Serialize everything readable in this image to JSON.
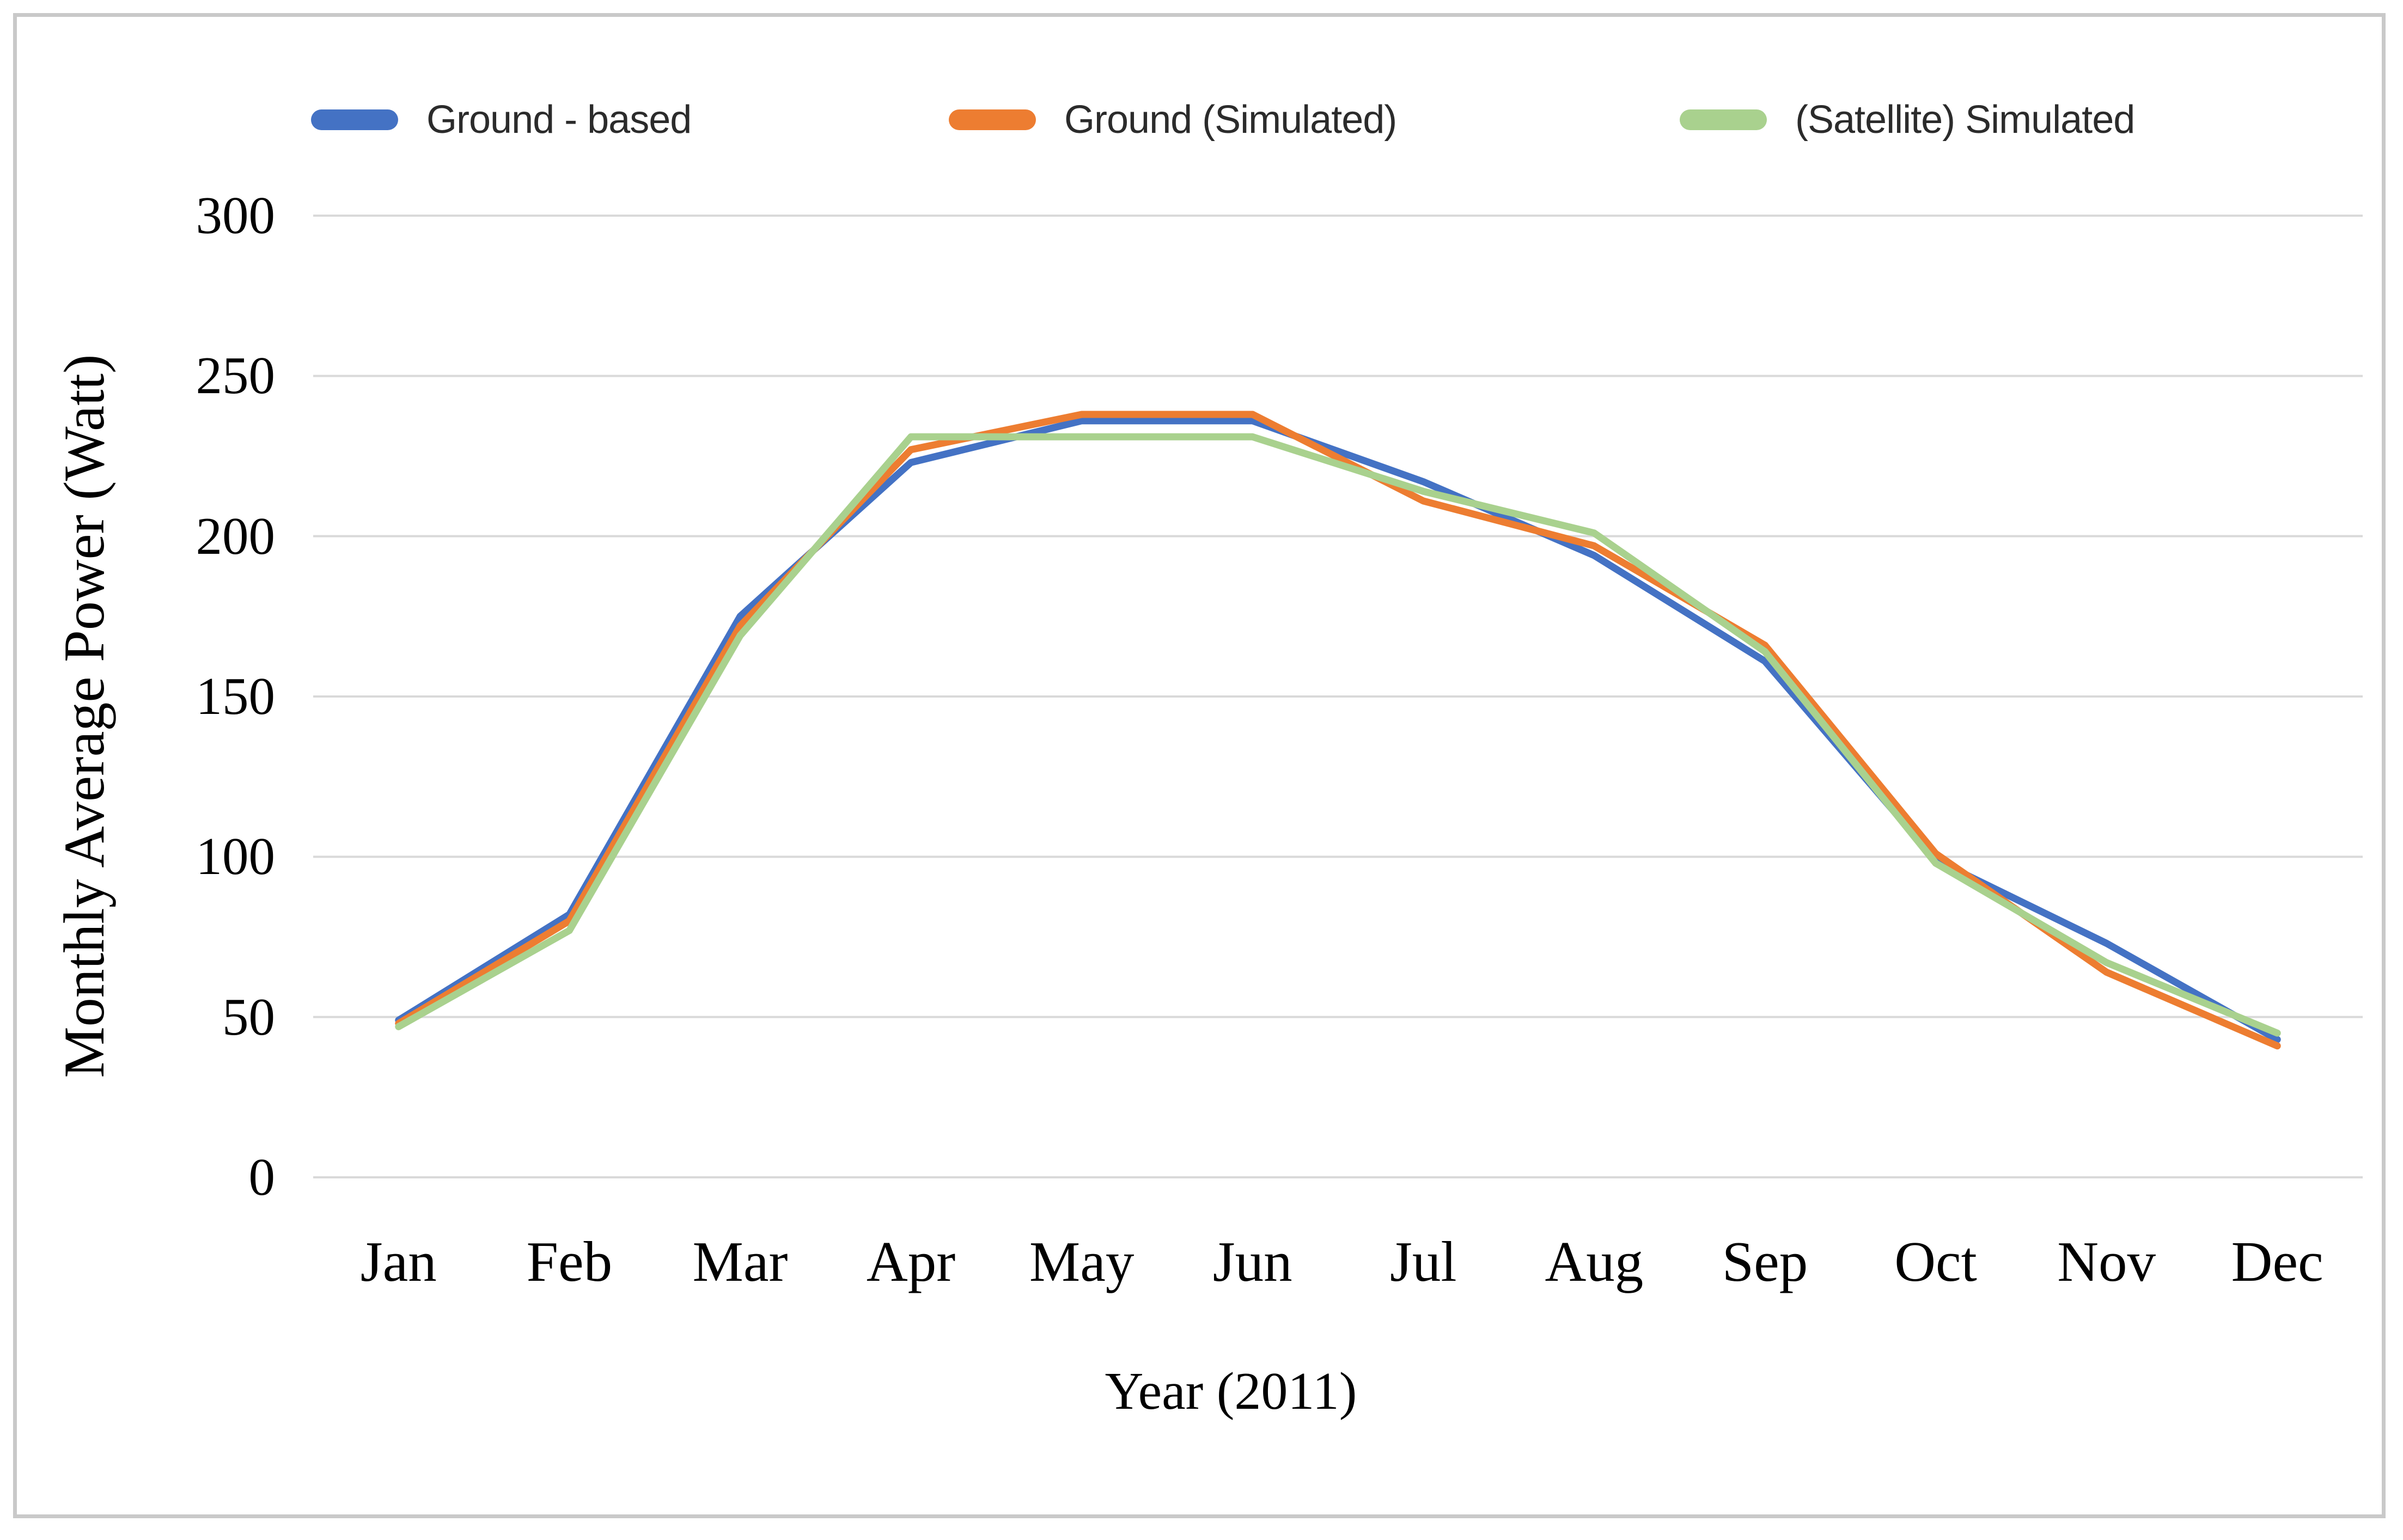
{
  "figure": {
    "background": "#ffffff",
    "border_color": "#c9c9c9",
    "gridline_color": "#d9d9d9"
  },
  "legend": {
    "items": [
      {
        "label": "Ground - based",
        "color": "#4472C4"
      },
      {
        "label": "Ground (Simulated)",
        "color": "#ED7D31"
      },
      {
        "label": "(Satellite) Simulated",
        "color": "#A9D18E"
      }
    ]
  },
  "axes": {
    "ylabel": "Monthly Average Power (Watt)",
    "xlabel": "Year (2011)",
    "yticks": [
      0,
      50,
      100,
      150,
      200,
      250,
      300
    ]
  },
  "chart_data": {
    "type": "line",
    "title": "",
    "xlabel": "Year (2011)",
    "ylabel": "Monthly Average Power (Watt)",
    "categories": [
      "Jan",
      "Feb",
      "Mar",
      "Apr",
      "May",
      "Jun",
      "Jul",
      "Aug",
      "Sep",
      "Oct",
      "Nov",
      "Dec"
    ],
    "series": [
      {
        "name": "Ground - based",
        "color": "#4472C4",
        "values": [
          49,
          82,
          175,
          223,
          236,
          236,
          217,
          194,
          161,
          99,
          73,
          43
        ]
      },
      {
        "name": "Ground (Simulated)",
        "color": "#ED7D31",
        "values": [
          48,
          80,
          172,
          227,
          238,
          238,
          211,
          197,
          166,
          101,
          64,
          41
        ]
      },
      {
        "name": "(Satellite) Simulated",
        "color": "#A9D18E",
        "values": [
          47,
          77,
          169,
          231,
          231,
          231,
          214,
          201,
          164,
          98,
          67,
          45
        ]
      }
    ],
    "ylim": [
      0,
      300
    ],
    "grid": "horizontal",
    "legend_position": "top",
    "line_width": 13
  }
}
